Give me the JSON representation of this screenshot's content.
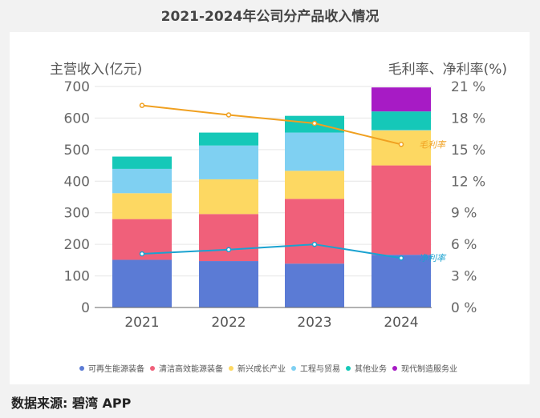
{
  "chart_data": {
    "type": "bar",
    "title": "2021-2024年公司分产品收入情况",
    "ylabel": "主营收入(亿元)",
    "y2label": "毛利率、净利率(%)",
    "ylim": [
      0,
      700
    ],
    "y2lim": [
      0,
      21
    ],
    "yticks": [
      "0",
      "100",
      "200",
      "300",
      "400",
      "500",
      "600",
      "700"
    ],
    "y2ticks": [
      "0 %",
      "3 %",
      "6 %",
      "9 %",
      "12 %",
      "15 %",
      "18 %",
      "21 %"
    ],
    "categories": [
      "2021",
      "2022",
      "2023",
      "2024"
    ],
    "stacked": true,
    "legend_position": "bottom",
    "series": [
      {
        "name": "可再生能源装备",
        "color": "#5b7bd5",
        "values": [
          151,
          147,
          139,
          167
        ]
      },
      {
        "name": "清洁高效能源装备",
        "color": "#f0607a",
        "values": [
          129,
          149,
          205,
          283
        ]
      },
      {
        "name": "新兴成长产业",
        "color": "#fdd862",
        "values": [
          82,
          110,
          89,
          111
        ]
      },
      {
        "name": "工程与贸易",
        "color": "#7fd0f2",
        "values": [
          77,
          107,
          121,
          1
        ]
      },
      {
        "name": "其他业务",
        "color": "#15c8b8",
        "values": [
          39,
          41,
          53,
          59
        ]
      },
      {
        "name": "现代制造服务业",
        "color": "#a71bc5",
        "values": [
          0,
          0,
          0,
          76
        ]
      }
    ],
    "lines": [
      {
        "name": "毛利率",
        "color": "#f0a020",
        "values": [
          19.2,
          18.3,
          17.5,
          15.5
        ]
      },
      {
        "name": "净利率",
        "color": "#1aa2d0",
        "values": [
          5.1,
          5.5,
          6.0,
          4.7
        ]
      }
    ]
  },
  "footer": {
    "source": "数据来源: 碧湾 APP"
  }
}
